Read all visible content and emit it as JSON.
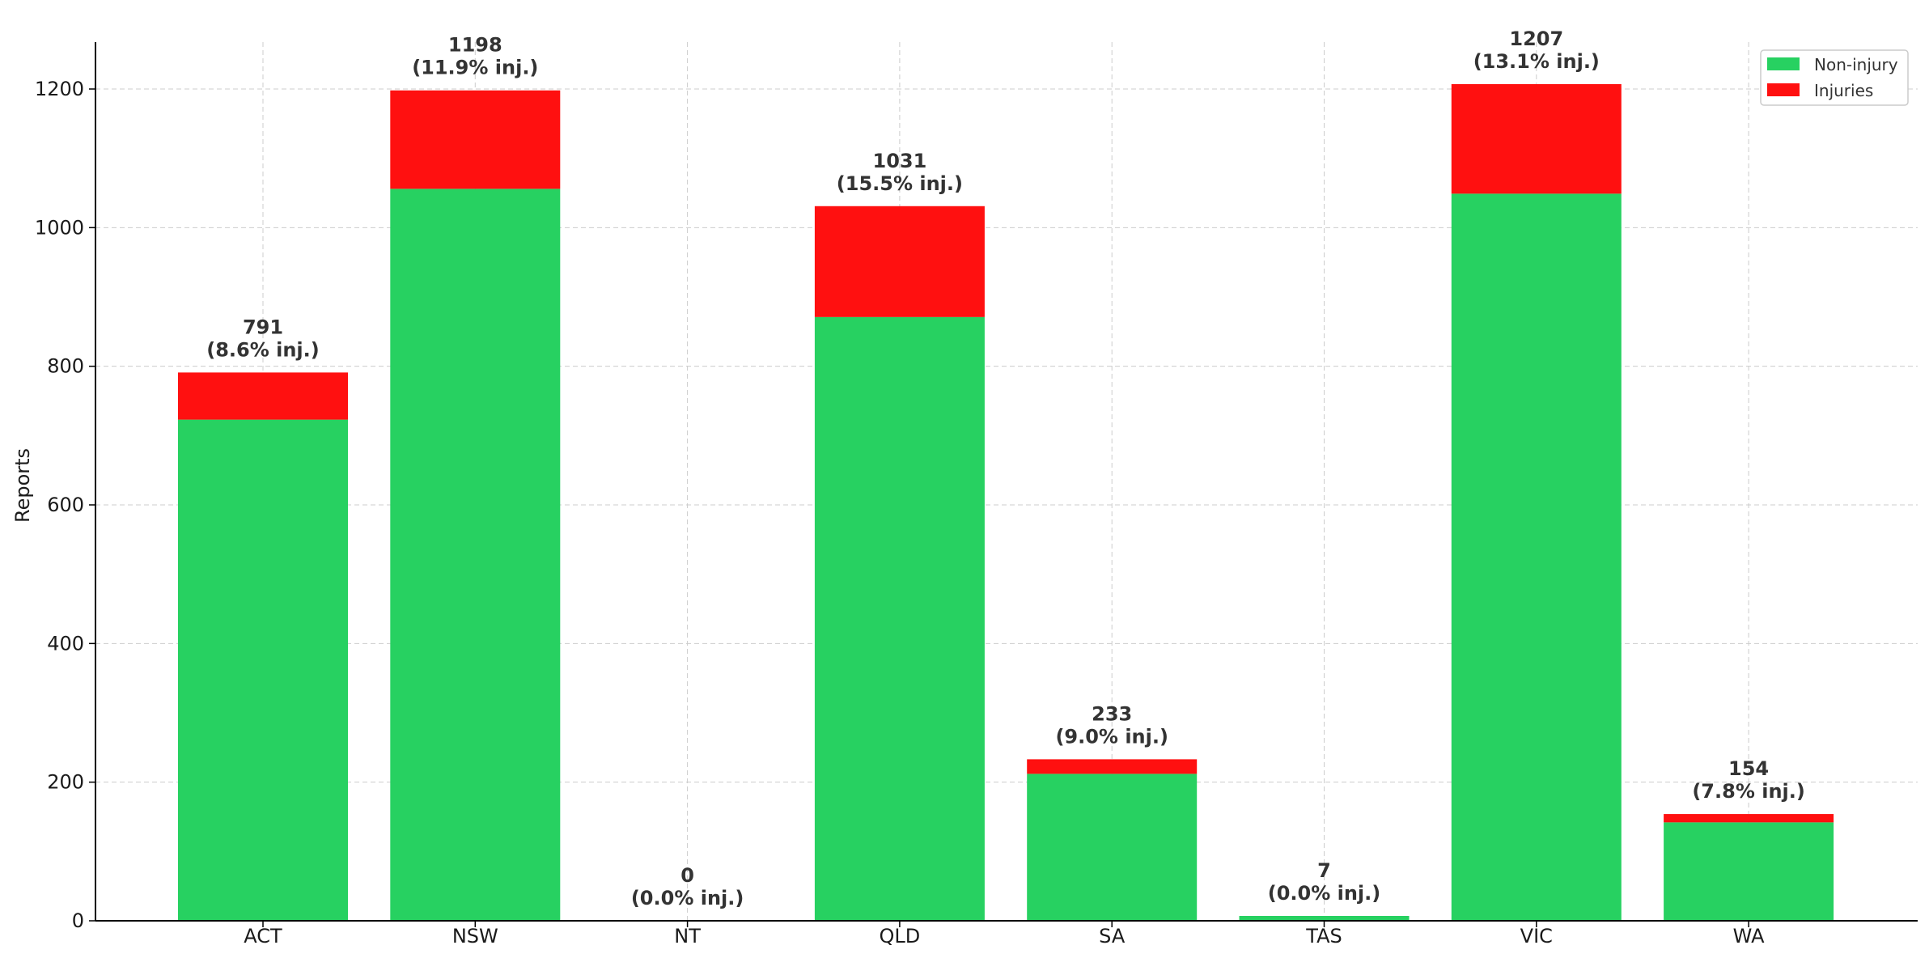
{
  "chart_data": {
    "type": "bar",
    "stacked": true,
    "title": "",
    "xlabel": "",
    "ylabel": "Reports",
    "ylim": [
      0,
      1270
    ],
    "yticks": [
      0,
      200,
      400,
      600,
      800,
      1000,
      1200
    ],
    "grid": true,
    "legend_position": "top-right",
    "categories": [
      "ACT",
      "NSW",
      "NT",
      "QLD",
      "SA",
      "TAS",
      "VIC",
      "WA"
    ],
    "series": [
      {
        "name": "Non-injury",
        "color": "#27d161",
        "values": [
          723,
          1056,
          0,
          871,
          212,
          7,
          1049,
          142
        ]
      },
      {
        "name": "Injuries",
        "color": "#ff1010",
        "values": [
          68,
          142,
          0,
          160,
          21,
          0,
          158,
          12
        ]
      }
    ],
    "totals": [
      791,
      1198,
      0,
      1031,
      233,
      7,
      1207,
      154
    ],
    "annotations": [
      {
        "total": "791",
        "pct": "(8.6% inj.)"
      },
      {
        "total": "1198",
        "pct": "(11.9% inj.)"
      },
      {
        "total": "0",
        "pct": "(0.0% inj.)"
      },
      {
        "total": "1031",
        "pct": "(15.5% inj.)"
      },
      {
        "total": "233",
        "pct": "(9.0% inj.)"
      },
      {
        "total": "7",
        "pct": "(0.0% inj.)"
      },
      {
        "total": "1207",
        "pct": "(13.1% inj.)"
      },
      {
        "total": "154",
        "pct": "(7.8% inj.)"
      }
    ]
  }
}
